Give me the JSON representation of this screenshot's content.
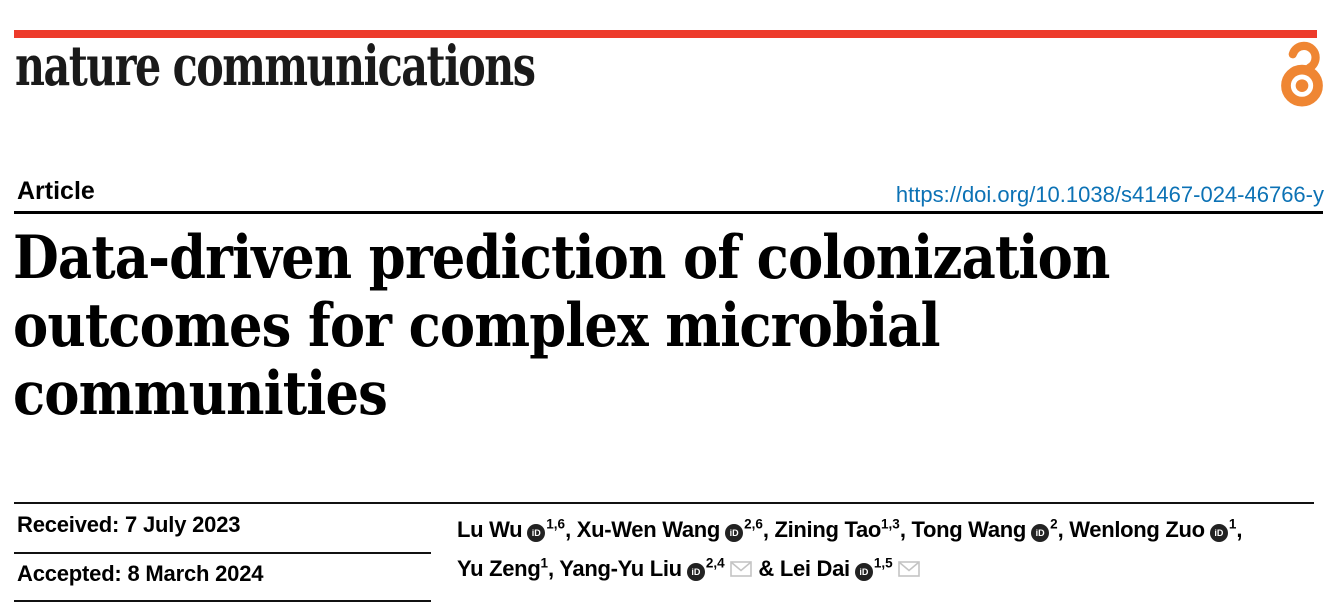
{
  "masthead": {
    "journal_name": "nature communications",
    "bar_color": "#ed3b2b",
    "open_access_icon": "open-access-padlock",
    "open_access_icon_color": "#ef8633"
  },
  "article_header": {
    "kicker": "Article",
    "doi_link": "https://doi.org/10.1038/s41467-024-46766-y",
    "doi_color": "#0c72b5",
    "title_line1": "Data-driven prediction of colonization",
    "title_line2": "outcomes for complex microbial",
    "title_line3": "communities"
  },
  "dates": {
    "received_label": "Received: 7 July 2023",
    "accepted_label": "Accepted: 8 March 2024"
  },
  "authors": {
    "orcid_icon_label": "iD",
    "orcid_icon_color": "#222222",
    "email_icon": "envelope",
    "email_icon_color": "#c4c4c4",
    "list": [
      {
        "name": "Lu Wu",
        "orcid": true,
        "sup": "1,6",
        "mail": false,
        "sep": ", ",
        "break_after": false
      },
      {
        "name": "Xu-Wen Wang",
        "orcid": true,
        "sup": "2,6",
        "mail": false,
        "sep": ", ",
        "break_after": false
      },
      {
        "name": "Zining Tao",
        "orcid": false,
        "sup": "1,3",
        "mail": false,
        "sep": ", ",
        "break_after": false
      },
      {
        "name": "Tong Wang",
        "orcid": true,
        "sup": "2",
        "mail": false,
        "sep": ", ",
        "break_after": false
      },
      {
        "name": "Wenlong Zuo",
        "orcid": true,
        "sup": "1",
        "mail": false,
        "sep": ",",
        "break_after": true
      },
      {
        "name": "Yu Zeng",
        "orcid": false,
        "sup": "1",
        "mail": false,
        "sep": ", ",
        "break_after": false
      },
      {
        "name": "Yang-Yu Liu",
        "orcid": true,
        "sup": "2,4",
        "mail": true,
        "sep": " & ",
        "break_after": false
      },
      {
        "name": "Lei Dai",
        "orcid": true,
        "sup": "1,5",
        "mail": true,
        "sep": "",
        "break_after": false
      }
    ]
  }
}
